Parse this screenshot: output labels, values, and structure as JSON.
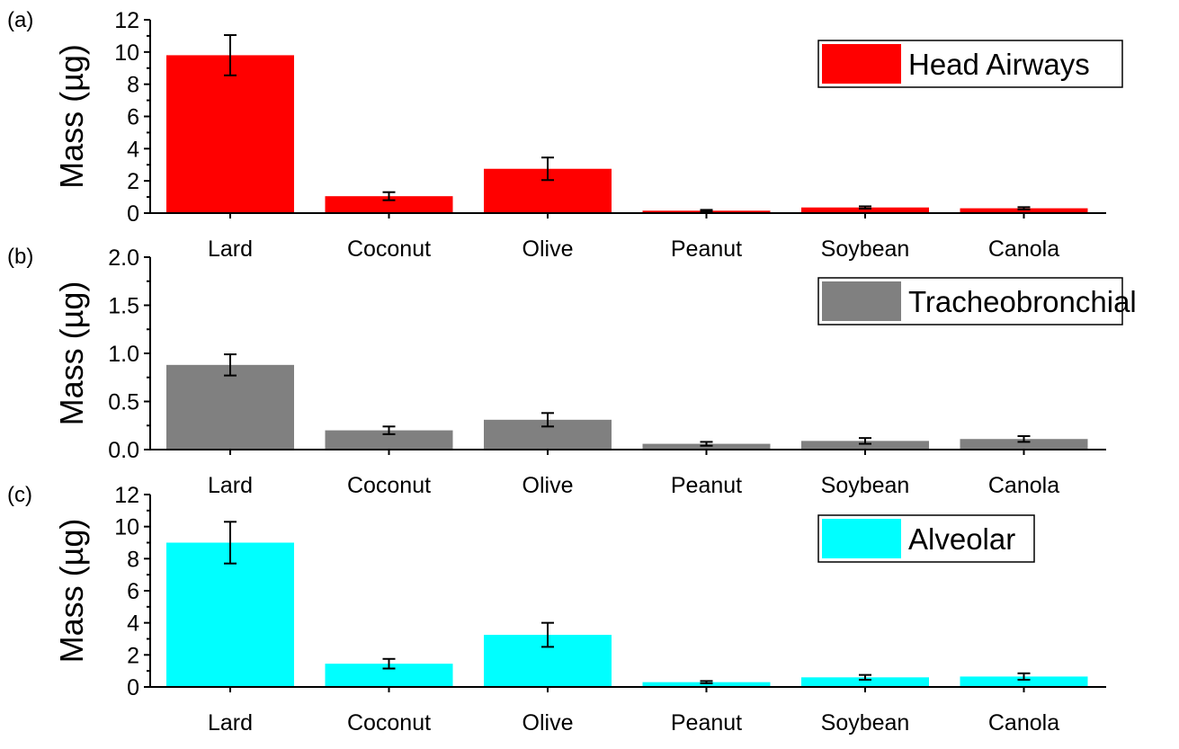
{
  "chart_data": [
    {
      "type": "bar",
      "panel_label": "(a)",
      "categories": [
        "Lard",
        "Coconut",
        "Olive",
        "Peanut",
        "Soybean",
        "Canola"
      ],
      "series": [
        {
          "name": "Head Airways",
          "color": "#ff0000",
          "values": [
            9.8,
            1.05,
            2.75,
            0.15,
            0.35,
            0.3
          ],
          "errors": [
            1.25,
            0.25,
            0.7,
            0.05,
            0.07,
            0.07
          ]
        }
      ],
      "ylabel": "Mass (µg)",
      "ylim": [
        0,
        12
      ],
      "yticks": [
        0,
        2,
        4,
        6,
        8,
        10,
        12
      ],
      "ytick_labels": [
        "0",
        "2",
        "4",
        "6",
        "8",
        "10",
        "12"
      ],
      "legend_position": "top-right"
    },
    {
      "type": "bar",
      "panel_label": "(b)",
      "categories": [
        "Lard",
        "Coconut",
        "Olive",
        "Peanut",
        "Soybean",
        "Canola"
      ],
      "series": [
        {
          "name": "Tracheobronchial",
          "color": "#808080",
          "values": [
            0.88,
            0.2,
            0.31,
            0.06,
            0.09,
            0.11
          ],
          "errors": [
            0.11,
            0.04,
            0.07,
            0.02,
            0.03,
            0.03
          ]
        }
      ],
      "ylabel": "Mass (µg)",
      "ylim": [
        0,
        2.0
      ],
      "yticks": [
        0,
        0.5,
        1.0,
        1.5,
        2.0
      ],
      "ytick_labels": [
        "0.0",
        "0.5",
        "1.0",
        "1.5",
        "2.0"
      ],
      "legend_position": "top-right"
    },
    {
      "type": "bar",
      "panel_label": "(c)",
      "categories": [
        "Lard",
        "Coconut",
        "Olive",
        "Peanut",
        "Soybean",
        "Canola"
      ],
      "series": [
        {
          "name": "Alveolar",
          "color": "#00ffff",
          "values": [
            9.0,
            1.45,
            3.25,
            0.3,
            0.6,
            0.65
          ],
          "errors": [
            1.3,
            0.3,
            0.75,
            0.07,
            0.15,
            0.2
          ]
        }
      ],
      "ylabel": "Mass (µg)",
      "ylim": [
        0,
        12
      ],
      "yticks": [
        0,
        2,
        4,
        6,
        8,
        10,
        12
      ],
      "ytick_labels": [
        "0",
        "2",
        "4",
        "6",
        "8",
        "10",
        "12"
      ],
      "legend_position": "top-right"
    }
  ]
}
